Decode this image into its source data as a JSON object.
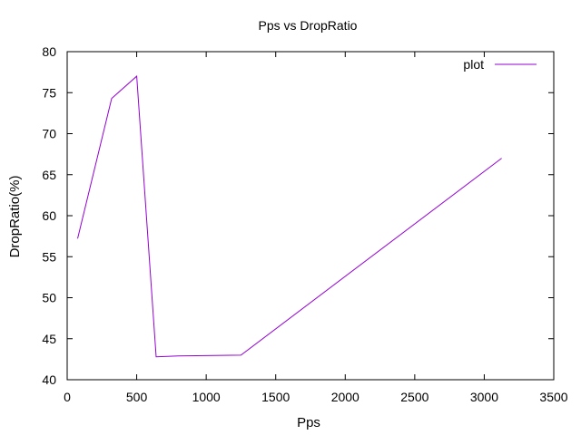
{
  "chart_data": {
    "type": "line",
    "title": "Pps vs DropRatio",
    "xlabel": "Pps",
    "ylabel": "DropRatio(%)",
    "xlim": [
      0,
      3500
    ],
    "ylim": [
      40,
      80
    ],
    "xticks": [
      0,
      500,
      1000,
      1500,
      2000,
      2500,
      3000,
      3500
    ],
    "yticks": [
      40,
      45,
      50,
      55,
      60,
      65,
      70,
      75,
      80
    ],
    "grid": false,
    "legend": "top-right",
    "series": [
      {
        "name": "plot",
        "color": "#9400d3",
        "x": [
          75,
          320,
          500,
          640,
          800,
          1250,
          3125
        ],
        "y": [
          57.2,
          74.3,
          77.0,
          42.8,
          42.9,
          43.0,
          67.0
        ]
      }
    ]
  }
}
